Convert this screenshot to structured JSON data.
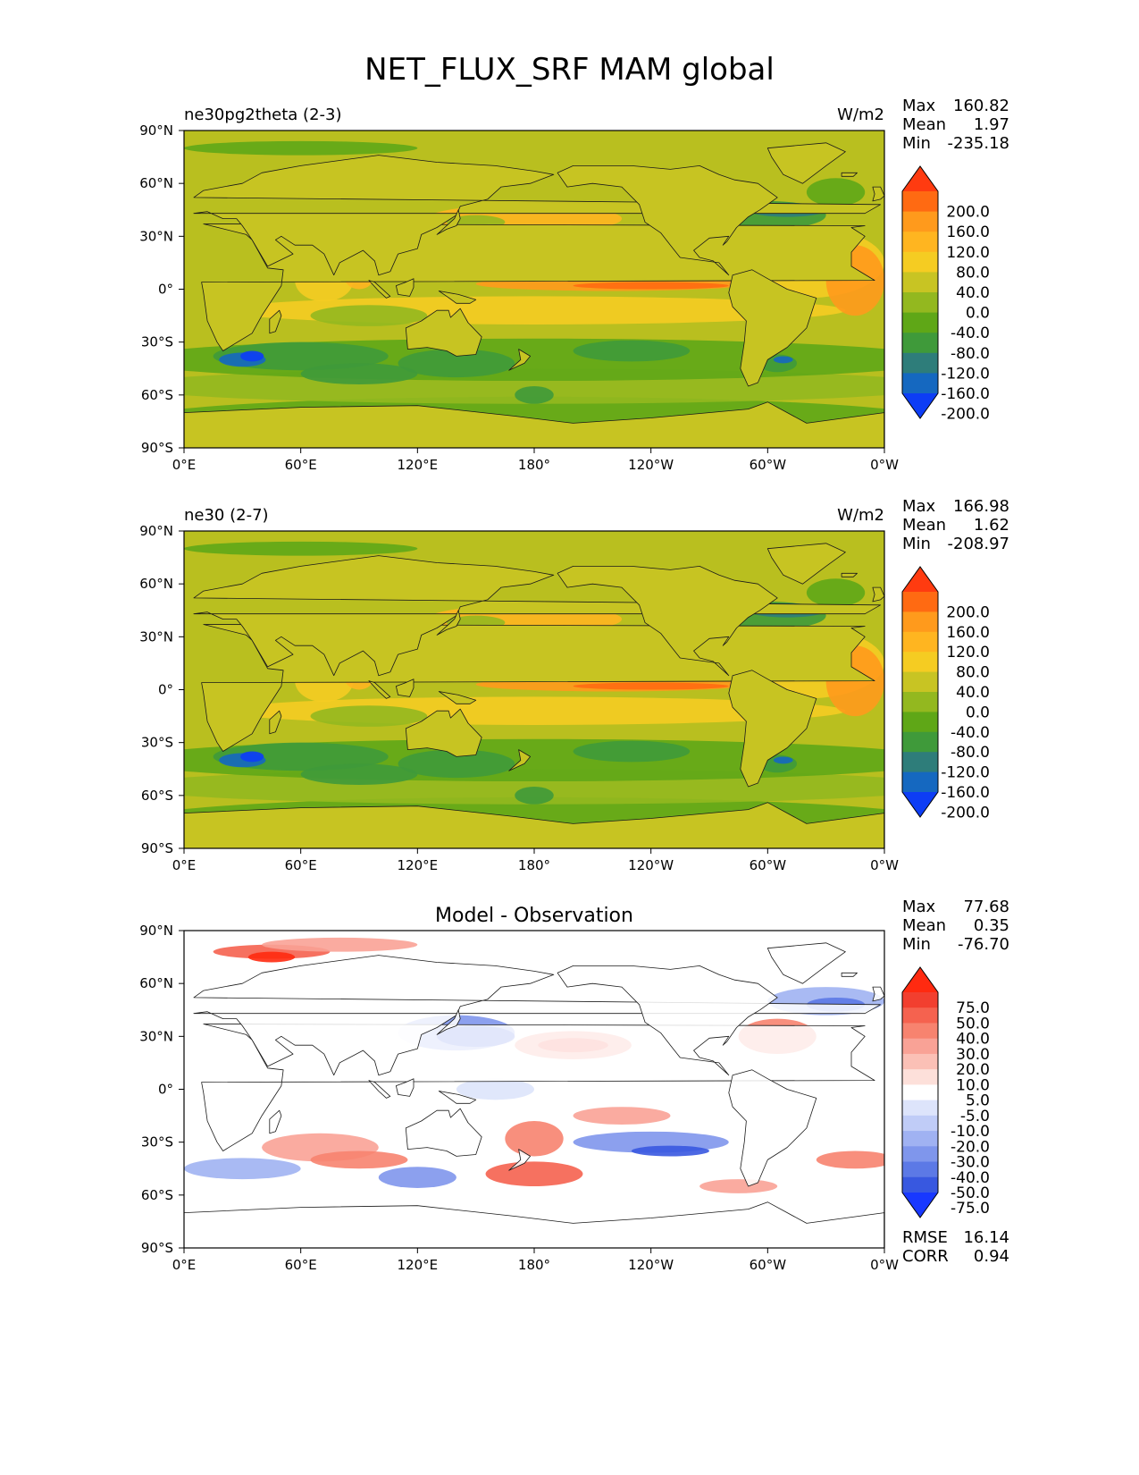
{
  "page": {
    "title": "NET_FLUX_SRF MAM global"
  },
  "colors": {
    "land_default": "#c7c422",
    "ocean_default": "#b9bf1f",
    "coast": "#1a1a1a",
    "diff_bg": "#ffffff"
  },
  "chart_data": [
    {
      "type": "heatmap",
      "title": "ne30pg2theta (2-3)",
      "units": "W/m2",
      "stats": {
        "max_label": "Max",
        "max": "160.82",
        "mean_label": "Mean",
        "mean": "1.97",
        "min_label": "Min",
        "min": "-235.18"
      },
      "xlabel": "",
      "ylabel": "",
      "xlim": [
        0,
        360
      ],
      "ylim": [
        -90,
        90
      ],
      "xticks": [
        "0°E",
        "60°E",
        "120°E",
        "180°",
        "120°W",
        "60°W",
        "0°W"
      ],
      "yticks": [
        "90°N",
        "60°N",
        "30°N",
        "0°",
        "30°S",
        "60°S",
        "90°S"
      ],
      "colorbar": {
        "labels": [
          "200.0",
          "160.0",
          "120.0",
          "80.0",
          "40.0",
          "0.0",
          "-40.0",
          "-80.0",
          "-120.0",
          "-160.0",
          "-200.0"
        ],
        "colors": [
          "#ff3b10",
          "#ff6a12",
          "#ff9a1c",
          "#ffb520",
          "#f5cc22",
          "#c8c423",
          "#93b81f",
          "#5fa717",
          "#3f9a3a",
          "#2e7d7a",
          "#1568c0",
          "#0d3df5"
        ]
      }
    },
    {
      "type": "heatmap",
      "title": "ne30 (2-7)",
      "units": "W/m2",
      "stats": {
        "max_label": "Max",
        "max": "166.98",
        "mean_label": "Mean",
        "mean": "1.62",
        "min_label": "Min",
        "min": "-208.97"
      },
      "xlabel": "",
      "ylabel": "",
      "xlim": [
        0,
        360
      ],
      "ylim": [
        -90,
        90
      ],
      "xticks": [
        "0°E",
        "60°E",
        "120°E",
        "180°",
        "120°W",
        "60°W",
        "0°W"
      ],
      "yticks": [
        "90°N",
        "60°N",
        "30°N",
        "0°",
        "30°S",
        "60°S",
        "90°S"
      ],
      "colorbar": {
        "labels": [
          "200.0",
          "160.0",
          "120.0",
          "80.0",
          "40.0",
          "0.0",
          "-40.0",
          "-80.0",
          "-120.0",
          "-160.0",
          "-200.0"
        ],
        "colors": [
          "#ff3b10",
          "#ff6a12",
          "#ff9a1c",
          "#ffb520",
          "#f5cc22",
          "#c8c423",
          "#93b81f",
          "#5fa717",
          "#3f9a3a",
          "#2e7d7a",
          "#1568c0",
          "#0d3df5"
        ]
      }
    },
    {
      "type": "heatmap",
      "title": "Model - Observation",
      "units": "",
      "stats": {
        "max_label": "Max",
        "max": "77.68",
        "mean_label": "Mean",
        "mean": "0.35",
        "min_label": "Min",
        "min": "-76.70"
      },
      "extra_stats": {
        "rmse_label": "RMSE",
        "rmse": "16.14",
        "corr_label": "CORR",
        "corr": "0.94"
      },
      "xlabel": "",
      "ylabel": "",
      "xlim": [
        0,
        360
      ],
      "ylim": [
        -90,
        90
      ],
      "xticks": [
        "0°E",
        "60°E",
        "120°E",
        "180°",
        "120°W",
        "60°W",
        "0°W"
      ],
      "yticks": [
        "90°N",
        "60°N",
        "30°N",
        "0°",
        "30°S",
        "60°S",
        "90°S"
      ],
      "colorbar": {
        "labels": [
          "75.0",
          "50.0",
          "40.0",
          "30.0",
          "20.0",
          "10.0",
          "5.0",
          "-5.0",
          "-10.0",
          "-20.0",
          "-30.0",
          "-40.0",
          "-50.0",
          "-75.0"
        ],
        "colors": [
          "#ff2a10",
          "#f23f2f",
          "#f5624f",
          "#f7836f",
          "#f9a296",
          "#fbc0b6",
          "#fde0da",
          "#ffffff",
          "#dde4fb",
          "#c0ccf7",
          "#a0b2f2",
          "#7f96ec",
          "#5c79e6",
          "#3858e0",
          "#1838ff"
        ]
      }
    }
  ]
}
